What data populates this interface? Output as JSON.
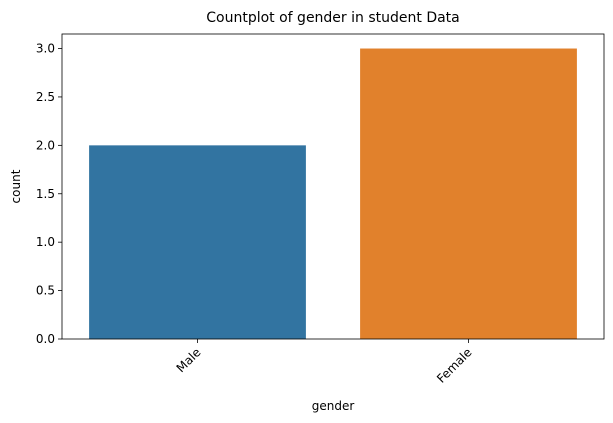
{
  "chart_data": {
    "type": "bar",
    "title": "Countplot of gender in student Data",
    "xlabel": "gender",
    "ylabel": "count",
    "categories": [
      "Male",
      "Female"
    ],
    "values": [
      2,
      3
    ],
    "ylim": [
      0,
      3.15
    ],
    "yticks": [
      0.0,
      0.5,
      1.0,
      1.5,
      2.0,
      2.5,
      3.0
    ],
    "ytick_labels": [
      "0.0",
      "0.5",
      "1.0",
      "1.5",
      "2.0",
      "2.5",
      "3.0"
    ],
    "x_tick_rotation": 45,
    "colors": [
      "#3274a1",
      "#e1812c"
    ],
    "grid": false,
    "legend": "none"
  }
}
